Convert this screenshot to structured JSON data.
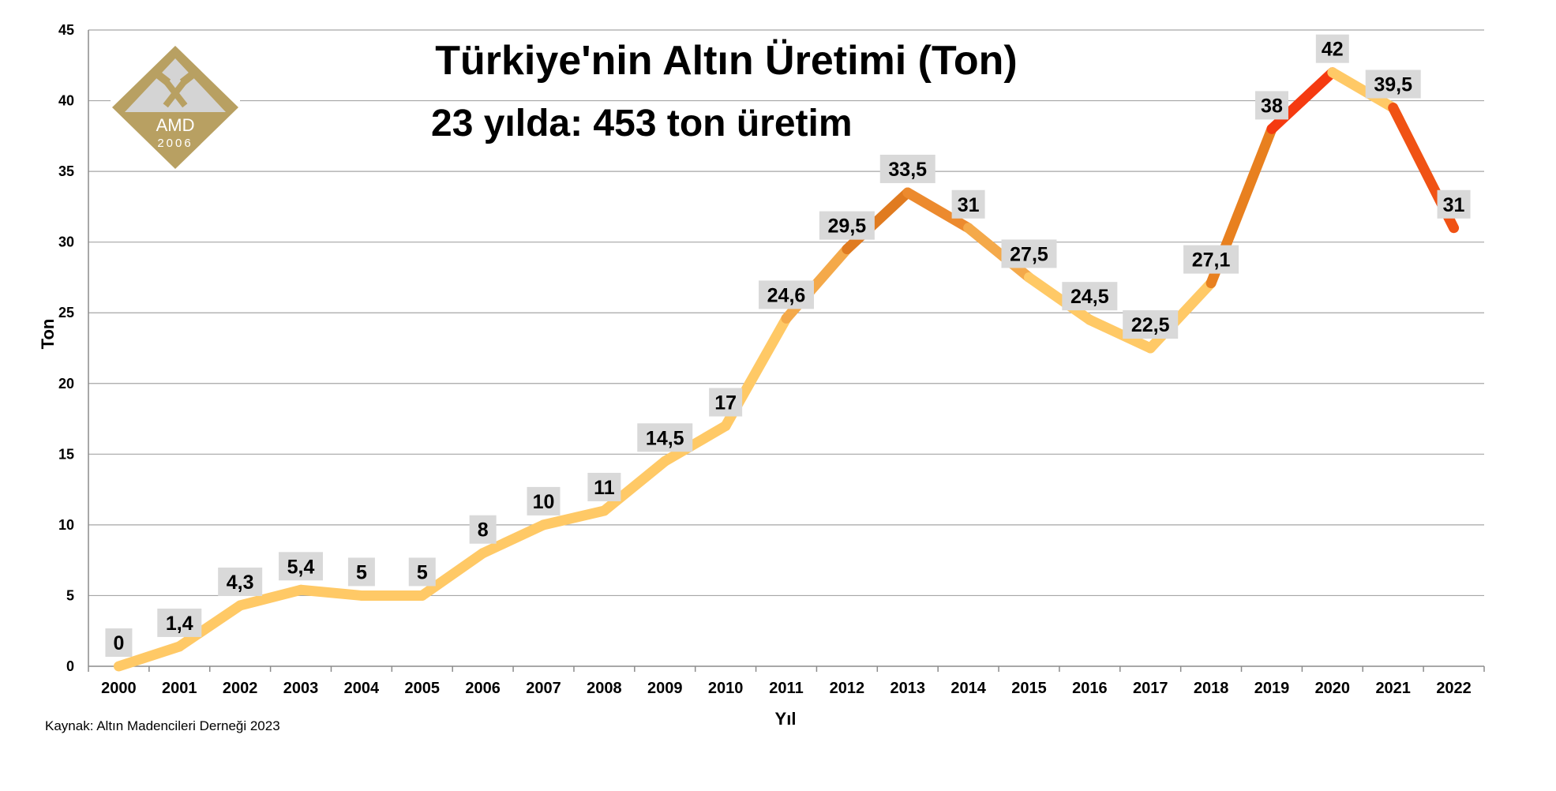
{
  "chart_data": {
    "type": "line",
    "title": "Türkiye'nin Altın Üretimi (Ton)",
    "subtitle": "23 yılda: 453 ton üretim",
    "xlabel": "Yıl",
    "ylabel": "Ton",
    "ylim": [
      0,
      45
    ],
    "yticks": [
      0,
      5,
      10,
      15,
      20,
      25,
      30,
      35,
      40,
      45
    ],
    "grid": true,
    "categories": [
      "2000",
      "2001",
      "2002",
      "2003",
      "2004",
      "2005",
      "2006",
      "2007",
      "2008",
      "2009",
      "2010",
      "2011",
      "2012",
      "2013",
      "2014",
      "2015",
      "2016",
      "2017",
      "2018",
      "2019",
      "2020",
      "2021",
      "2022"
    ],
    "series": [
      {
        "values": [
          0,
          1.4,
          4.3,
          5.4,
          5,
          5,
          8,
          10,
          11,
          14.5,
          17,
          24.6,
          29.5,
          33.5,
          31,
          27.5,
          24.5,
          22.5,
          27.1,
          38,
          42,
          39.5,
          31
        ],
        "labels": [
          "0",
          "1,4",
          "4,3",
          "5,4",
          "5",
          "5",
          "8",
          "10",
          "11",
          "14,5",
          "17",
          "24,6",
          "29,5",
          "33,5",
          "31",
          "27,5",
          "24,5",
          "22,5",
          "27,1",
          "38",
          "42",
          "39,5",
          "31"
        ]
      }
    ],
    "segment_colors": [
      "#ffc966",
      "#ffc966",
      "#ffc966",
      "#ffc966",
      "#ffc966",
      "#ffc966",
      "#ffc966",
      "#ffc966",
      "#ffc966",
      "#ffc966",
      "#ffc966",
      "#f4a94a",
      "#e07b20",
      "#ec8a2e",
      "#f4a94a",
      "#ffc966",
      "#ffc966",
      "#ffc966",
      "#e8801f",
      "#f53a10",
      "#ffc966",
      "#f05214"
    ],
    "label_box_color": "#d9d9d9",
    "grid_color": "#a6a6a6"
  },
  "logo": {
    "text": "AMD",
    "year": "2006",
    "icon": "crossed-hammers-icon",
    "gold_color": "#b8a062",
    "light_color": "#d4d4d4"
  },
  "source_note": "Kaynak: Altın Madencileri Derneği 2023"
}
